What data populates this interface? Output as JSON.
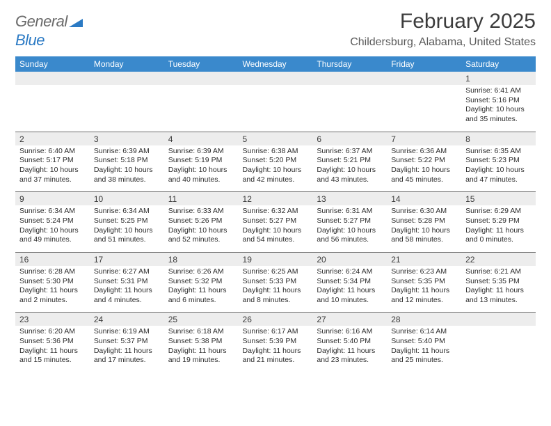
{
  "logo": {
    "word1": "General",
    "word2": "Blue"
  },
  "title": "February 2025",
  "location": "Childersburg, Alabama, United States",
  "colors": {
    "header_bg": "#3a89cc",
    "header_text": "#ffffff",
    "daynum_bg": "#ededed",
    "row_border": "#6b6b6b",
    "logo_gray": "#6a6a6a",
    "logo_blue": "#2b7ac4"
  },
  "fonts": {
    "title_size": 30,
    "location_size": 16,
    "dow_size": 12,
    "daynum_size": 12,
    "cell_size": 10.5
  },
  "dow": [
    "Sunday",
    "Monday",
    "Tuesday",
    "Wednesday",
    "Thursday",
    "Friday",
    "Saturday"
  ],
  "weeks": [
    [
      null,
      null,
      null,
      null,
      null,
      null,
      {
        "n": "1",
        "sr": "Sunrise: 6:41 AM",
        "ss": "Sunset: 5:16 PM",
        "dl1": "Daylight: 10 hours",
        "dl2": "and 35 minutes."
      }
    ],
    [
      {
        "n": "2",
        "sr": "Sunrise: 6:40 AM",
        "ss": "Sunset: 5:17 PM",
        "dl1": "Daylight: 10 hours",
        "dl2": "and 37 minutes."
      },
      {
        "n": "3",
        "sr": "Sunrise: 6:39 AM",
        "ss": "Sunset: 5:18 PM",
        "dl1": "Daylight: 10 hours",
        "dl2": "and 38 minutes."
      },
      {
        "n": "4",
        "sr": "Sunrise: 6:39 AM",
        "ss": "Sunset: 5:19 PM",
        "dl1": "Daylight: 10 hours",
        "dl2": "and 40 minutes."
      },
      {
        "n": "5",
        "sr": "Sunrise: 6:38 AM",
        "ss": "Sunset: 5:20 PM",
        "dl1": "Daylight: 10 hours",
        "dl2": "and 42 minutes."
      },
      {
        "n": "6",
        "sr": "Sunrise: 6:37 AM",
        "ss": "Sunset: 5:21 PM",
        "dl1": "Daylight: 10 hours",
        "dl2": "and 43 minutes."
      },
      {
        "n": "7",
        "sr": "Sunrise: 6:36 AM",
        "ss": "Sunset: 5:22 PM",
        "dl1": "Daylight: 10 hours",
        "dl2": "and 45 minutes."
      },
      {
        "n": "8",
        "sr": "Sunrise: 6:35 AM",
        "ss": "Sunset: 5:23 PM",
        "dl1": "Daylight: 10 hours",
        "dl2": "and 47 minutes."
      }
    ],
    [
      {
        "n": "9",
        "sr": "Sunrise: 6:34 AM",
        "ss": "Sunset: 5:24 PM",
        "dl1": "Daylight: 10 hours",
        "dl2": "and 49 minutes."
      },
      {
        "n": "10",
        "sr": "Sunrise: 6:34 AM",
        "ss": "Sunset: 5:25 PM",
        "dl1": "Daylight: 10 hours",
        "dl2": "and 51 minutes."
      },
      {
        "n": "11",
        "sr": "Sunrise: 6:33 AM",
        "ss": "Sunset: 5:26 PM",
        "dl1": "Daylight: 10 hours",
        "dl2": "and 52 minutes."
      },
      {
        "n": "12",
        "sr": "Sunrise: 6:32 AM",
        "ss": "Sunset: 5:27 PM",
        "dl1": "Daylight: 10 hours",
        "dl2": "and 54 minutes."
      },
      {
        "n": "13",
        "sr": "Sunrise: 6:31 AM",
        "ss": "Sunset: 5:27 PM",
        "dl1": "Daylight: 10 hours",
        "dl2": "and 56 minutes."
      },
      {
        "n": "14",
        "sr": "Sunrise: 6:30 AM",
        "ss": "Sunset: 5:28 PM",
        "dl1": "Daylight: 10 hours",
        "dl2": "and 58 minutes."
      },
      {
        "n": "15",
        "sr": "Sunrise: 6:29 AM",
        "ss": "Sunset: 5:29 PM",
        "dl1": "Daylight: 11 hours",
        "dl2": "and 0 minutes."
      }
    ],
    [
      {
        "n": "16",
        "sr": "Sunrise: 6:28 AM",
        "ss": "Sunset: 5:30 PM",
        "dl1": "Daylight: 11 hours",
        "dl2": "and 2 minutes."
      },
      {
        "n": "17",
        "sr": "Sunrise: 6:27 AM",
        "ss": "Sunset: 5:31 PM",
        "dl1": "Daylight: 11 hours",
        "dl2": "and 4 minutes."
      },
      {
        "n": "18",
        "sr": "Sunrise: 6:26 AM",
        "ss": "Sunset: 5:32 PM",
        "dl1": "Daylight: 11 hours",
        "dl2": "and 6 minutes."
      },
      {
        "n": "19",
        "sr": "Sunrise: 6:25 AM",
        "ss": "Sunset: 5:33 PM",
        "dl1": "Daylight: 11 hours",
        "dl2": "and 8 minutes."
      },
      {
        "n": "20",
        "sr": "Sunrise: 6:24 AM",
        "ss": "Sunset: 5:34 PM",
        "dl1": "Daylight: 11 hours",
        "dl2": "and 10 minutes."
      },
      {
        "n": "21",
        "sr": "Sunrise: 6:23 AM",
        "ss": "Sunset: 5:35 PM",
        "dl1": "Daylight: 11 hours",
        "dl2": "and 12 minutes."
      },
      {
        "n": "22",
        "sr": "Sunrise: 6:21 AM",
        "ss": "Sunset: 5:35 PM",
        "dl1": "Daylight: 11 hours",
        "dl2": "and 13 minutes."
      }
    ],
    [
      {
        "n": "23",
        "sr": "Sunrise: 6:20 AM",
        "ss": "Sunset: 5:36 PM",
        "dl1": "Daylight: 11 hours",
        "dl2": "and 15 minutes."
      },
      {
        "n": "24",
        "sr": "Sunrise: 6:19 AM",
        "ss": "Sunset: 5:37 PM",
        "dl1": "Daylight: 11 hours",
        "dl2": "and 17 minutes."
      },
      {
        "n": "25",
        "sr": "Sunrise: 6:18 AM",
        "ss": "Sunset: 5:38 PM",
        "dl1": "Daylight: 11 hours",
        "dl2": "and 19 minutes."
      },
      {
        "n": "26",
        "sr": "Sunrise: 6:17 AM",
        "ss": "Sunset: 5:39 PM",
        "dl1": "Daylight: 11 hours",
        "dl2": "and 21 minutes."
      },
      {
        "n": "27",
        "sr": "Sunrise: 6:16 AM",
        "ss": "Sunset: 5:40 PM",
        "dl1": "Daylight: 11 hours",
        "dl2": "and 23 minutes."
      },
      {
        "n": "28",
        "sr": "Sunrise: 6:14 AM",
        "ss": "Sunset: 5:40 PM",
        "dl1": "Daylight: 11 hours",
        "dl2": "and 25 minutes."
      },
      null
    ]
  ]
}
